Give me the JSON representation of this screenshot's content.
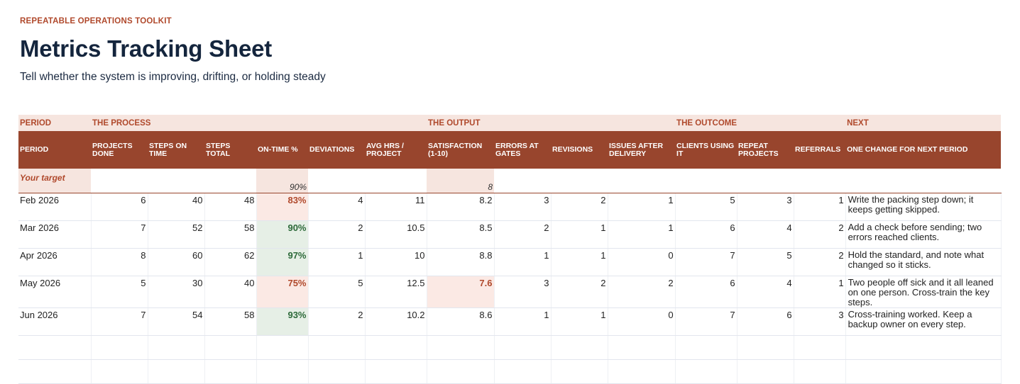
{
  "header": {
    "eyebrow": "REPEATABLE OPERATIONS TOOLKIT",
    "title": "Metrics Tracking Sheet",
    "subtitle": "Tell whether the system is improving, drifting, or holding steady"
  },
  "sections": {
    "period": "PERIOD",
    "process": "THE PROCESS",
    "output": "THE OUTPUT",
    "outcome": "THE OUTCOME",
    "next": "NEXT"
  },
  "columns": {
    "period": "PERIOD",
    "projects_done": "PROJECTS DONE",
    "steps_on_time": "STEPS ON TIME",
    "steps_total": "STEPS TOTAL",
    "on_time": "ON-TIME %",
    "deviations": "DEVIATIONS",
    "avg_hrs": "AVG HRS / PROJECT",
    "satisfaction": "SATISFACTION (1-10)",
    "errors": "ERRORS AT GATES",
    "revisions": "REVISIONS",
    "issues": "ISSUES AFTER DELIVERY",
    "clients": "CLIENTS USING IT",
    "repeat": "REPEAT PROJECTS",
    "referrals": "REFERRALS",
    "change": "ONE CHANGE FOR NEXT PERIOD"
  },
  "target": {
    "label": "Your target",
    "on_time": "90%",
    "satisfaction": "8"
  },
  "rows": [
    {
      "period": "Feb 2026",
      "projects_done": "6",
      "steps_on_time": "40",
      "steps_total": "48",
      "on_time": "83%",
      "deviations": "4",
      "avg_hrs": "11",
      "satisfaction": "8.2",
      "errors": "3",
      "revisions": "2",
      "issues": "1",
      "clients": "5",
      "repeat": "3",
      "referrals": "1",
      "change": "Write the packing step down; it keeps getting skipped."
    },
    {
      "period": "Mar 2026",
      "projects_done": "7",
      "steps_on_time": "52",
      "steps_total": "58",
      "on_time": "90%",
      "deviations": "2",
      "avg_hrs": "10.5",
      "satisfaction": "8.5",
      "errors": "2",
      "revisions": "1",
      "issues": "1",
      "clients": "6",
      "repeat": "4",
      "referrals": "2",
      "change": "Add a check before sending; two errors reached clients."
    },
    {
      "period": "Apr 2026",
      "projects_done": "8",
      "steps_on_time": "60",
      "steps_total": "62",
      "on_time": "97%",
      "deviations": "1",
      "avg_hrs": "10",
      "satisfaction": "8.8",
      "errors": "1",
      "revisions": "1",
      "issues": "0",
      "clients": "7",
      "repeat": "5",
      "referrals": "2",
      "change": "Hold the standard, and note what changed so it sticks."
    },
    {
      "period": "May 2026",
      "projects_done": "5",
      "steps_on_time": "30",
      "steps_total": "40",
      "on_time": "75%",
      "deviations": "5",
      "avg_hrs": "12.5",
      "satisfaction": "7.6",
      "errors": "3",
      "revisions": "2",
      "issues": "2",
      "clients": "6",
      "repeat": "4",
      "referrals": "1",
      "change": "Two people off sick and it all leaned on one person. Cross-train the key steps."
    },
    {
      "period": "Jun 2026",
      "projects_done": "7",
      "steps_on_time": "54",
      "steps_total": "58",
      "on_time": "93%",
      "deviations": "2",
      "avg_hrs": "10.2",
      "satisfaction": "8.6",
      "errors": "1",
      "revisions": "1",
      "issues": "0",
      "clients": "7",
      "repeat": "6",
      "referrals": "3",
      "change": "Cross-training worked. Keep a backup owner on every step."
    }
  ],
  "status_colors": {
    "good_fill": "#e6efe6",
    "good_text": "#2d6a3a",
    "bad_fill": "#fbe9e4",
    "bad_text": "#b0492c",
    "header_fill": "#98452d",
    "section_fill": "#f6e5df"
  }
}
